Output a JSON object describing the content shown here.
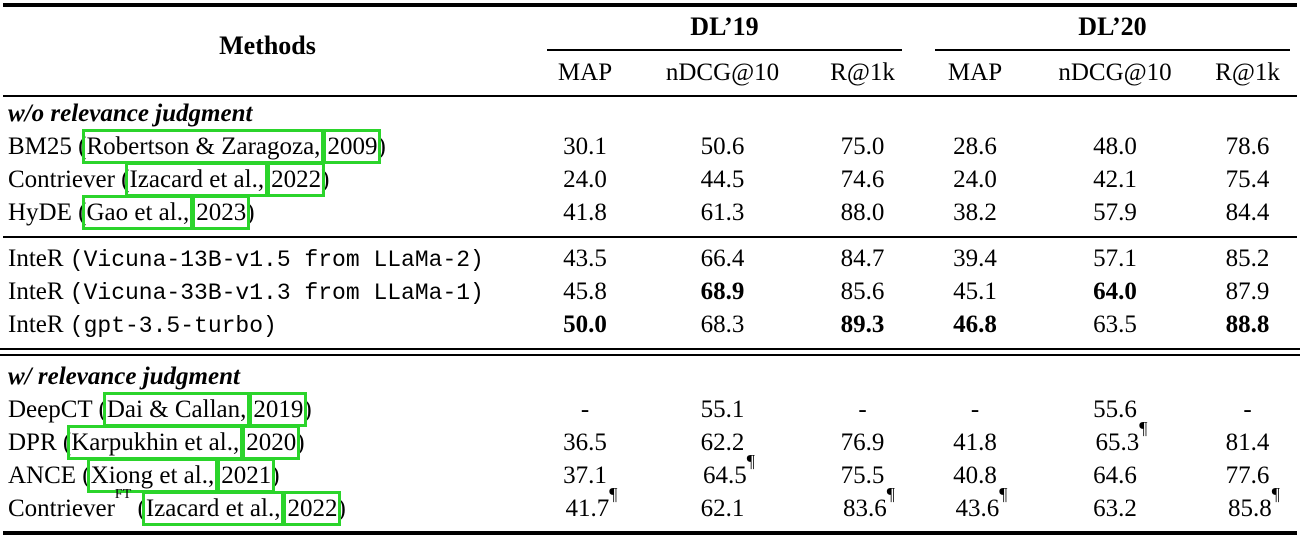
{
  "colors": {
    "link_box_green": "#2BD42B",
    "rule_black": "#000000",
    "background": "#FFFFFF"
  },
  "table": {
    "methods_header": "Methods",
    "groups": {
      "g1": "DL’19",
      "g2": "DL’20"
    },
    "columns": [
      "MAP",
      "nDCG@10",
      "R@1k",
      "MAP",
      "nDCG@10",
      "R@1k"
    ],
    "sections": [
      {
        "title": "w/o relevance judgment",
        "rows": [
          {
            "prefix": "BM25 (",
            "author": "Robertson & Zaragoza,",
            "year": "2009",
            "suffix": ")",
            "cells": [
              {
                "v": "30.1"
              },
              {
                "v": "50.6"
              },
              {
                "v": "75.0"
              },
              {
                "v": "28.6"
              },
              {
                "v": "48.0"
              },
              {
                "v": "78.6"
              }
            ]
          },
          {
            "prefix": "Contriever (",
            "author": "Izacard et al.,",
            "year": "2022",
            "suffix": ")",
            "cells": [
              {
                "v": "24.0"
              },
              {
                "v": "44.5"
              },
              {
                "v": "74.6"
              },
              {
                "v": "24.0"
              },
              {
                "v": "42.1"
              },
              {
                "v": "75.4"
              }
            ]
          },
          {
            "prefix": "HyDE (",
            "author": "Gao et al.,",
            "year": "2023",
            "suffix": ")",
            "cells": [
              {
                "v": "41.8"
              },
              {
                "v": "61.3"
              },
              {
                "v": "88.0"
              },
              {
                "v": "38.2"
              },
              {
                "v": "57.9"
              },
              {
                "v": "84.4"
              }
            ]
          }
        ]
      },
      {
        "title": null,
        "rows": [
          {
            "prefix": "InteR ",
            "mono": "(Vicuna-13B-v1.5 from LLaMa-2)",
            "cells": [
              {
                "v": "43.5"
              },
              {
                "v": "66.4"
              },
              {
                "v": "84.7"
              },
              {
                "v": "39.4"
              },
              {
                "v": "57.1"
              },
              {
                "v": "85.2"
              }
            ]
          },
          {
            "prefix": "InteR ",
            "mono": "(Vicuna-33B-v1.3 from LLaMa-1)",
            "cells": [
              {
                "v": "45.8"
              },
              {
                "v": "68.9",
                "b": true
              },
              {
                "v": "85.6"
              },
              {
                "v": "45.1"
              },
              {
                "v": "64.0",
                "b": true
              },
              {
                "v": "87.9"
              }
            ]
          },
          {
            "prefix": "InteR ",
            "mono": "(gpt-3.5-turbo)",
            "cells": [
              {
                "v": "50.0",
                "b": true
              },
              {
                "v": "68.3"
              },
              {
                "v": "89.3",
                "b": true
              },
              {
                "v": "46.8",
                "b": true
              },
              {
                "v": "63.5"
              },
              {
                "v": "88.8",
                "b": true
              }
            ]
          }
        ]
      },
      {
        "title": "w/ relevance judgment",
        "rows": [
          {
            "prefix": "DeepCT (",
            "author": "Dai & Callan,",
            "year": "2019",
            "suffix": ")",
            "cells": [
              {
                "v": "-"
              },
              {
                "v": "55.1"
              },
              {
                "v": "-"
              },
              {
                "v": "-"
              },
              {
                "v": "55.6"
              },
              {
                "v": "-"
              }
            ]
          },
          {
            "prefix": "DPR (",
            "author": "Karpukhin et al.,",
            "year": "2020",
            "suffix": ")",
            "cells": [
              {
                "v": "36.5"
              },
              {
                "v": "62.2"
              },
              {
                "v": "76.9"
              },
              {
                "v": "41.8"
              },
              {
                "v": "65.3",
                "p": true
              },
              {
                "v": "81.4"
              }
            ]
          },
          {
            "prefix": "ANCE (",
            "author": "Xiong et al.,",
            "year": "2021",
            "suffix": ")",
            "cells": [
              {
                "v": "37.1"
              },
              {
                "v": "64.5",
                "p": true
              },
              {
                "v": "75.5"
              },
              {
                "v": "40.8"
              },
              {
                "v": "64.6"
              },
              {
                "v": "77.6"
              }
            ]
          },
          {
            "prefix": "Contriever",
            "sup": "FT",
            "prefix2": " (",
            "author": "Izacard et al.,",
            "year": "2022",
            "suffix": ")",
            "cells": [
              {
                "v": "41.7",
                "p": true
              },
              {
                "v": "62.1"
              },
              {
                "v": "83.6",
                "p": true
              },
              {
                "v": "43.6",
                "p": true
              },
              {
                "v": "63.2"
              },
              {
                "v": "85.8",
                "p": true
              }
            ]
          }
        ]
      }
    ]
  }
}
